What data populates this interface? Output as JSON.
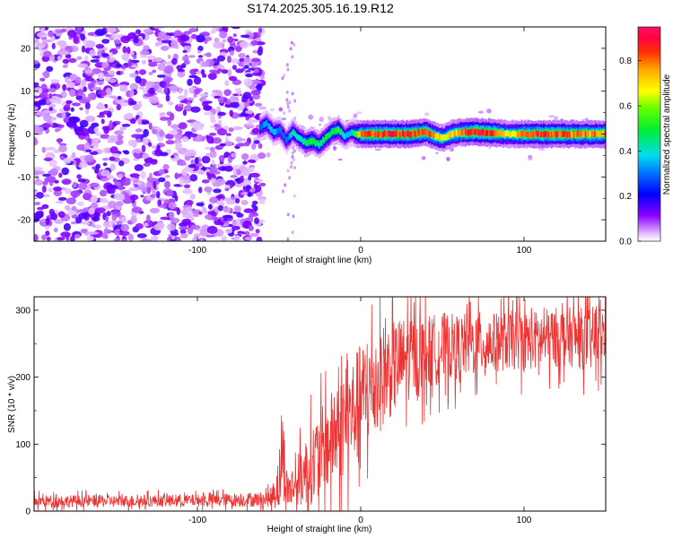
{
  "title": "S174.2025.305.16.19.R12",
  "chart_data": [
    {
      "type": "heatmap",
      "xlabel": "Height of straight line (km)",
      "ylabel": "Frequency (Hz)",
      "xlim": [
        -200,
        150
      ],
      "ylim": [
        -25,
        25
      ],
      "x_ticks": [
        -100,
        0,
        100
      ],
      "y_ticks": [
        -20,
        -10,
        0,
        10,
        20
      ],
      "colorbar": {
        "label": "Normalized spectral amplitude",
        "range": [
          0,
          0.95
        ],
        "ticks": [
          0.0,
          0.2,
          0.4,
          0.6,
          0.8
        ],
        "tick_labels": [
          "0.0",
          "0.2",
          "0.4",
          "0.6",
          "0.8"
        ]
      },
      "noise_region_x": [
        -200,
        -60
      ],
      "signal_ridge": {
        "x": [
          -62,
          -58,
          -54,
          -50,
          -46,
          -42,
          -38,
          -34,
          -30,
          -26,
          -22,
          -18,
          -14,
          -10,
          -6,
          -2,
          0,
          10,
          20,
          30,
          40,
          45,
          50,
          55,
          60,
          70,
          80,
          90,
          100,
          110,
          120,
          130,
          140,
          150
        ],
        "freq": [
          1.5,
          2.5,
          0.5,
          1.0,
          -1.5,
          0.5,
          -1.0,
          -2.0,
          -1.5,
          -2.5,
          -1.0,
          0.5,
          1.0,
          -0.5,
          0.5,
          0.0,
          0.0,
          0.0,
          0.0,
          0.0,
          0.5,
          -0.5,
          -1.0,
          0.0,
          0.3,
          0.5,
          0.3,
          0.0,
          0.0,
          0.0,
          0.0,
          0.0,
          0.0,
          0.0
        ],
        "amp": [
          0.3,
          0.35,
          0.35,
          0.3,
          0.3,
          0.4,
          0.4,
          0.45,
          0.5,
          0.45,
          0.5,
          0.45,
          0.5,
          0.35,
          0.35,
          0.6,
          0.8,
          0.85,
          0.85,
          0.85,
          0.8,
          0.75,
          0.65,
          0.7,
          0.75,
          0.9,
          0.85,
          0.65,
          0.8,
          0.85,
          0.85,
          0.8,
          0.8,
          0.8
        ]
      }
    },
    {
      "type": "line",
      "xlabel": "Height of straight line (km)",
      "ylabel": "SNR (10 * v/v)",
      "xlim": [
        -200,
        150
      ],
      "ylim": [
        0,
        320
      ],
      "x_ticks": [
        -100,
        0,
        100
      ],
      "y_ticks": [
        0,
        100,
        200,
        300
      ],
      "series": [
        {
          "name": "SNR",
          "color": "#ee3333",
          "x": [
            -200,
            -150,
            -100,
            -70,
            -55,
            -50,
            -48,
            -45,
            -40,
            -30,
            -20,
            -10,
            0,
            10,
            20,
            30,
            40,
            50,
            60,
            70,
            80,
            90,
            100,
            110,
            120,
            130,
            140,
            150
          ],
          "mean": [
            15,
            15,
            16,
            17,
            18,
            45,
            90,
            30,
            40,
            70,
            100,
            130,
            165,
            195,
            215,
            230,
            235,
            245,
            245,
            250,
            250,
            255,
            255,
            255,
            260,
            260,
            255,
            265
          ],
          "spread": [
            12,
            12,
            12,
            14,
            16,
            60,
            95,
            35,
            50,
            80,
            95,
            105,
            115,
            110,
            95,
            85,
            75,
            70,
            65,
            65,
            60,
            60,
            60,
            60,
            60,
            60,
            65,
            65
          ],
          "peak": 312
        }
      ]
    }
  ]
}
